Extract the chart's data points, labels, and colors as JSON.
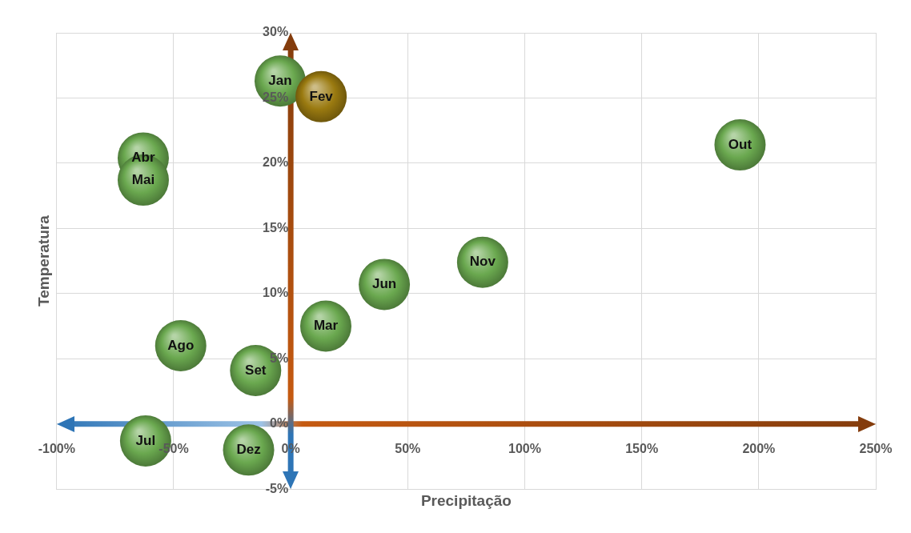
{
  "chart_data": {
    "type": "scatter",
    "xlabel": "Precipitação",
    "ylabel": "Temperatura",
    "xlim": [
      -100,
      250
    ],
    "ylim": [
      -5,
      30
    ],
    "xticks": [
      {
        "value": -100,
        "label": "-100%"
      },
      {
        "value": -50,
        "label": "-50%"
      },
      {
        "value": 0,
        "label": "0%"
      },
      {
        "value": 50,
        "label": "50%"
      },
      {
        "value": 100,
        "label": "100%"
      },
      {
        "value": 150,
        "label": "150%"
      },
      {
        "value": 200,
        "label": "200%"
      },
      {
        "value": 250,
        "label": "250%"
      }
    ],
    "yticks": [
      {
        "value": -5,
        "label": "-5%"
      },
      {
        "value": 0,
        "label": "0%"
      },
      {
        "value": 5,
        "label": "5%"
      },
      {
        "value": 10,
        "label": "10%"
      },
      {
        "value": 15,
        "label": "15%"
      },
      {
        "value": 20,
        "label": "20%"
      },
      {
        "value": 25,
        "label": "25%"
      },
      {
        "value": 30,
        "label": "30%"
      }
    ],
    "grid": true,
    "legend": false,
    "marker": "circle",
    "series": [
      {
        "x": [
          -4.5,
          13,
          15,
          -63,
          -63,
          40,
          -62,
          -47,
          -15,
          192,
          82,
          -18
        ],
        "values": [
          26.3,
          25.1,
          7.5,
          20.4,
          18.7,
          10.7,
          -1.3,
          6.0,
          4.1,
          21.4,
          12.4,
          -2.0
        ],
        "colors": [
          "#6aa84f",
          "#9a7a10",
          "#6aa84f",
          "#6aa84f",
          "#6aa84f",
          "#6aa84f",
          "#6aa84f",
          "#6aa84f",
          "#6aa84f",
          "#6aa84f",
          "#6aa84f",
          "#6aa84f"
        ],
        "value_labels": [
          "Jan",
          "Fev",
          "Mar",
          "Abr",
          "Mai",
          "Jun",
          "Jul",
          "Ago",
          "Set",
          "Out",
          "Nov",
          "Dez"
        ]
      }
    ]
  }
}
